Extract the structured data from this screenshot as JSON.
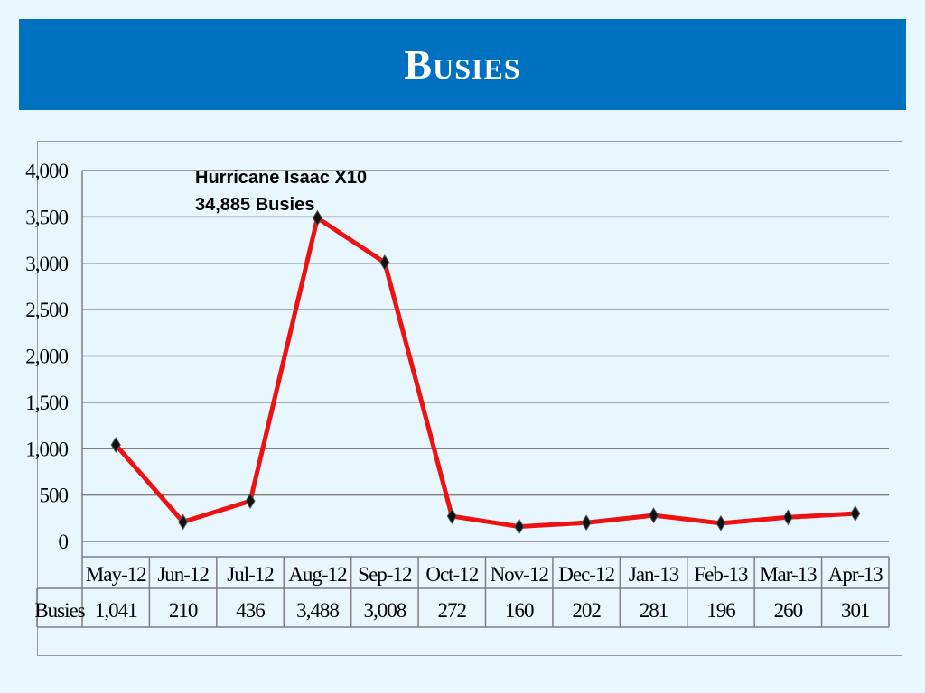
{
  "title": "Busies",
  "colors": {
    "title_bar": "#0070c0",
    "line": "#ee1111",
    "marker": "#111111",
    "grid": "#7f7f7f"
  },
  "chart_data": {
    "type": "line",
    "categories": [
      "May-12",
      "Jun-12",
      "Jul-12",
      "Aug-12",
      "Sep-12",
      "Oct-12",
      "Nov-12",
      "Dec-12",
      "Jan-13",
      "Feb-13",
      "Mar-13",
      "Apr-13"
    ],
    "series": [
      {
        "name": "Busies",
        "values": [
          1041,
          210,
          436,
          3488,
          3008,
          272,
          160,
          202,
          281,
          196,
          260,
          301
        ]
      }
    ],
    "value_labels": [
      "1,041",
      "210",
      "436",
      "3,488",
      "3,008",
      "272",
      "160",
      "202",
      "281",
      "196",
      "260",
      "301"
    ],
    "ylim": [
      0,
      4000
    ],
    "yticks": [
      0,
      500,
      1000,
      1500,
      2000,
      2500,
      3000,
      3500,
      4000
    ],
    "ytick_labels": [
      "0",
      "500",
      "1,000",
      "1,500",
      "2,000",
      "2,500",
      "3,000",
      "3,500",
      "4,000"
    ],
    "grid": true,
    "data_table": true,
    "annotation": {
      "line1": "Hurricane Isaac X10",
      "line2": "34,885 Busies"
    }
  }
}
